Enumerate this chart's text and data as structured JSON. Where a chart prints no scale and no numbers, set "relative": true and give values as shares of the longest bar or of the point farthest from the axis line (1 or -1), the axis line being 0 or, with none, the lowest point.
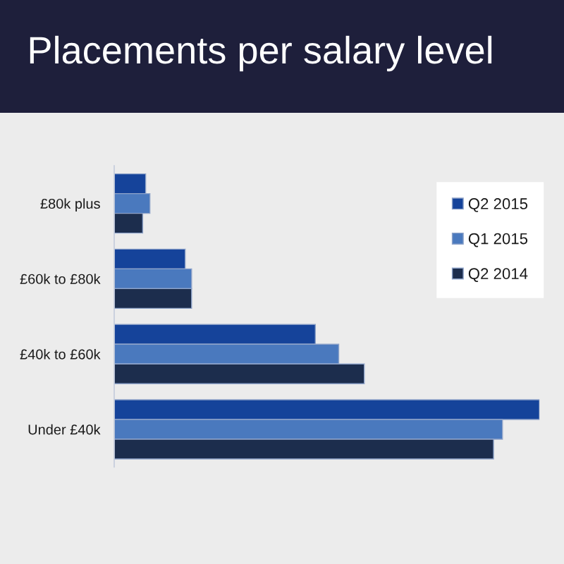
{
  "chart_data": {
    "type": "bar",
    "orientation": "horizontal",
    "relative": true,
    "title": "Placements per salary level",
    "categories": [
      "£80k plus",
      "£60k to £80k",
      "£40k to £60k",
      "Under £40k"
    ],
    "series": [
      {
        "name": "Q2 2015",
        "color": "#15439a",
        "values": [
          0.074,
          0.167,
          0.473,
          1
        ]
      },
      {
        "name": "Q1 2015",
        "color": "#4a79be",
        "values": [
          0.084,
          0.182,
          0.528,
          0.913
        ]
      },
      {
        "name": "Q2 2014",
        "color": "#1c2d4d",
        "values": [
          0.067,
          0.182,
          0.588,
          0.892
        ]
      }
    ],
    "legend": "top right"
  }
}
